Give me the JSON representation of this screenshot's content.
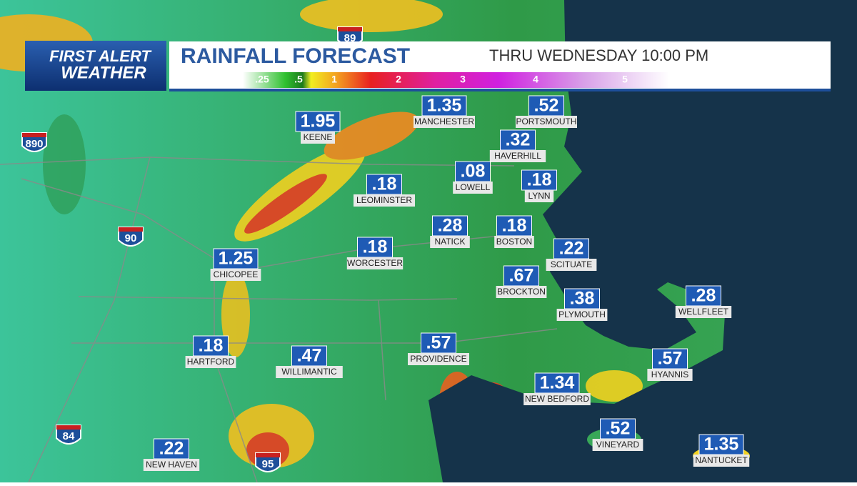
{
  "header": {
    "logo_line1": "FIRST ALERT",
    "logo_line2": "WEATHER",
    "title": "RAINFALL FORECAST",
    "subtitle": "THRU WEDNESDAY 10:00 PM"
  },
  "legend": {
    "ticks": [
      ".25",
      ".5",
      "1",
      "2",
      "3",
      "4",
      "5"
    ]
  },
  "highways": [
    "89",
    "890",
    "90",
    "84",
    "95"
  ],
  "cities": [
    {
      "value": "1.95",
      "name": "KEENE"
    },
    {
      "value": "1.35",
      "name": "MANCHESTER"
    },
    {
      "value": ".52",
      "name": "PORTSMOUTH"
    },
    {
      "value": ".32",
      "name": "HAVERHILL"
    },
    {
      "value": ".08",
      "name": "LOWELL"
    },
    {
      "value": ".18",
      "name": "LYNN"
    },
    {
      "value": ".18",
      "name": "LEOMINSTER"
    },
    {
      "value": ".28",
      "name": "NATICK"
    },
    {
      "value": ".18",
      "name": "BOSTON"
    },
    {
      "value": ".22",
      "name": "SCITUATE"
    },
    {
      "value": "1.25",
      "name": "CHICOPEE"
    },
    {
      "value": ".18",
      "name": "WORCESTER"
    },
    {
      "value": ".67",
      "name": "BROCKTON"
    },
    {
      "value": ".38",
      "name": "PLYMOUTH"
    },
    {
      "value": ".28",
      "name": "WELLFLEET"
    },
    {
      "value": ".18",
      "name": "HARTFORD"
    },
    {
      "value": ".47",
      "name": "WILLIMANTIC"
    },
    {
      "value": ".57",
      "name": "PROVIDENCE"
    },
    {
      "value": ".57",
      "name": "HYANNIS"
    },
    {
      "value": "1.34",
      "name": "NEW BEDFORD"
    },
    {
      "value": ".52",
      "name": "VINEYARD"
    },
    {
      "value": "1.35",
      "name": "NANTUCKET"
    },
    {
      "value": ".22",
      "name": "NEW HAVEN"
    }
  ]
}
